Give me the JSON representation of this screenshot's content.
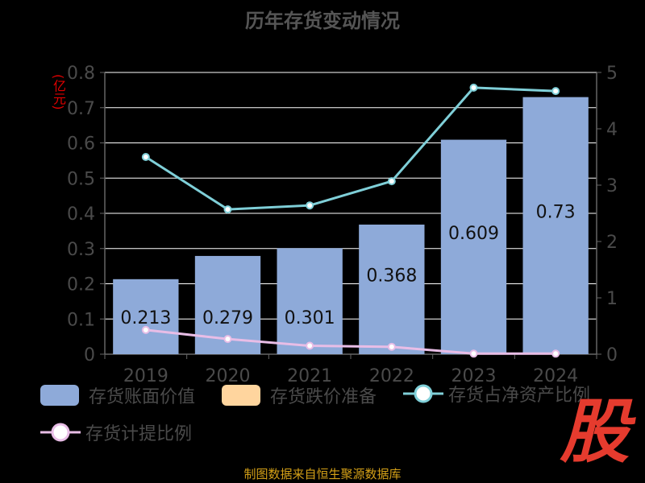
{
  "title": "历年存货变动情况",
  "unit_label": "(亿元)",
  "footer": "制图数据来自恒生聚源数据库",
  "watermark_text": "股",
  "colors": {
    "bar": "#8eaad9",
    "reserve": "#ffd59e",
    "ratio_line": "#7fcfd8",
    "provision_line": "#e8bde6",
    "axis": "#666666",
    "grid": "#ffffff"
  },
  "legend": [
    {
      "label": "存货账面价值",
      "kind": "box",
      "color": "#8eaad9"
    },
    {
      "label": "存货跌价准备",
      "kind": "box",
      "color": "#ffd59e"
    },
    {
      "label": "存货占净资产比例",
      "kind": "line",
      "color": "#7fcfd8"
    },
    {
      "label": "存货计提比例",
      "kind": "line",
      "color": "#e8bde6"
    }
  ],
  "chart_data": {
    "type": "bar",
    "title": "历年存货变动情况",
    "categories": [
      "2019",
      "2020",
      "2021",
      "2022",
      "2023",
      "2024"
    ],
    "ylabel": "(亿元)",
    "ylim": [
      0,
      0.8
    ],
    "y_ticks": [
      "0",
      "0.1",
      "0.2",
      "0.3",
      "0.4",
      "0.5",
      "0.6",
      "0.7",
      "0.8"
    ],
    "y2lim": [
      0,
      5
    ],
    "y2_ticks": [
      "0",
      "1",
      "2",
      "3",
      "4",
      "5"
    ],
    "grid": true,
    "legend_position": "bottom",
    "series": [
      {
        "name": "存货账面价值",
        "kind": "bar",
        "axis": "left",
        "values": [
          0.213,
          0.279,
          0.301,
          0.368,
          0.609,
          0.73
        ],
        "labels": [
          "0.213",
          "0.279",
          "0.301",
          "0.368",
          "0.609",
          "0.73"
        ]
      },
      {
        "name": "存货跌价准备",
        "kind": "bar",
        "axis": "left",
        "values": [
          0,
          0,
          0,
          0,
          0,
          0
        ]
      },
      {
        "name": "存货占净资产比例",
        "kind": "line",
        "axis": "right",
        "values": [
          3.5,
          2.57,
          2.64,
          3.07,
          4.73,
          4.67
        ]
      },
      {
        "name": "存货计提比例",
        "kind": "line",
        "axis": "right",
        "values": [
          0.43,
          0.27,
          0.15,
          0.13,
          0.01,
          0.01
        ]
      }
    ]
  }
}
